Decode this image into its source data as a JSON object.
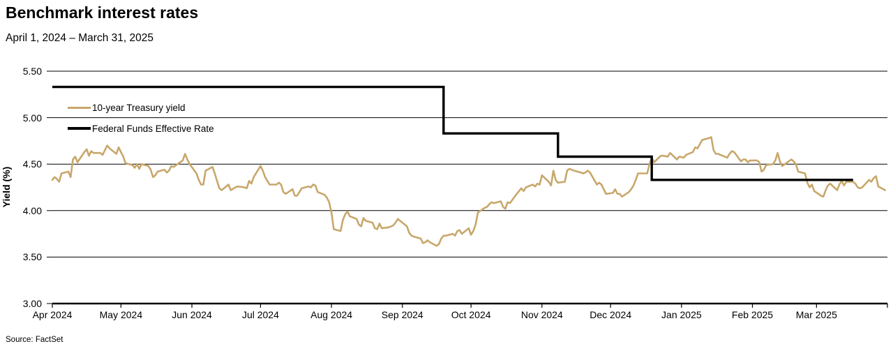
{
  "header": {
    "title": "Benchmark interest rates",
    "subtitle": "April 1, 2024 – March 31, 2025"
  },
  "footer": {
    "source": "Source: FactSet"
  },
  "chart_data": {
    "type": "line",
    "title": "Benchmark interest rates",
    "subtitle": "April 1, 2024 – March 31, 2025",
    "xlabel": "",
    "ylabel": "Yield (%)",
    "ylim": [
      3.0,
      5.5
    ],
    "x_domain_days": 365,
    "grid": "horizontal",
    "legend_position": "top-left-inside",
    "source": "Source: FactSet",
    "yticks": [
      {
        "value": 5.5,
        "label": "5.50"
      },
      {
        "value": 5.0,
        "label": "5.00"
      },
      {
        "value": 4.5,
        "label": "4.50"
      },
      {
        "value": 4.0,
        "label": "4.00"
      },
      {
        "value": 3.5,
        "label": "3.50"
      },
      {
        "value": 3.0,
        "label": "3.00"
      }
    ],
    "xticks": [
      {
        "day": 0,
        "label": "Apr 2024"
      },
      {
        "day": 30,
        "label": "May 2024"
      },
      {
        "day": 61,
        "label": "Jun 2024"
      },
      {
        "day": 91,
        "label": "Jul 2024"
      },
      {
        "day": 122,
        "label": "Aug 2024"
      },
      {
        "day": 153,
        "label": "Sep 2024"
      },
      {
        "day": 183,
        "label": "Oct 2024"
      },
      {
        "day": 214,
        "label": "Nov 2024"
      },
      {
        "day": 244,
        "label": "Dec 2024"
      },
      {
        "day": 275,
        "label": "Jan 2025"
      },
      {
        "day": 306,
        "label": "Feb 2025"
      },
      {
        "day": 334,
        "label": "Mar 2025"
      },
      {
        "day": 365,
        "label": ""
      }
    ],
    "series": [
      {
        "name": "10-year Treasury yield",
        "color": "#C8A76B",
        "width": 2.6,
        "points": [
          [
            0,
            4.33
          ],
          [
            1,
            4.36
          ],
          [
            2,
            4.34
          ],
          [
            3,
            4.31
          ],
          [
            4,
            4.4
          ],
          [
            7,
            4.42
          ],
          [
            8,
            4.36
          ],
          [
            9,
            4.55
          ],
          [
            10,
            4.58
          ],
          [
            11,
            4.52
          ],
          [
            14,
            4.63
          ],
          [
            15,
            4.66
          ],
          [
            16,
            4.59
          ],
          [
            17,
            4.64
          ],
          [
            18,
            4.62
          ],
          [
            21,
            4.62
          ],
          [
            22,
            4.6
          ],
          [
            23,
            4.65
          ],
          [
            24,
            4.7
          ],
          [
            25,
            4.67
          ],
          [
            28,
            4.61
          ],
          [
            29,
            4.68
          ],
          [
            30,
            4.63
          ],
          [
            31,
            4.58
          ],
          [
            32,
            4.51
          ],
          [
            35,
            4.49
          ],
          [
            36,
            4.46
          ],
          [
            37,
            4.5
          ],
          [
            38,
            4.45
          ],
          [
            39,
            4.5
          ],
          [
            42,
            4.48
          ],
          [
            43,
            4.44
          ],
          [
            44,
            4.36
          ],
          [
            45,
            4.38
          ],
          [
            46,
            4.42
          ],
          [
            49,
            4.44
          ],
          [
            50,
            4.41
          ],
          [
            51,
            4.43
          ],
          [
            52,
            4.48
          ],
          [
            53,
            4.47
          ],
          [
            57,
            4.54
          ],
          [
            58,
            4.61
          ],
          [
            59,
            4.55
          ],
          [
            60,
            4.5
          ],
          [
            63,
            4.4
          ],
          [
            64,
            4.33
          ],
          [
            65,
            4.28
          ],
          [
            66,
            4.28
          ],
          [
            67,
            4.43
          ],
          [
            70,
            4.47
          ],
          [
            71,
            4.4
          ],
          [
            72,
            4.32
          ],
          [
            73,
            4.24
          ],
          [
            74,
            4.22
          ],
          [
            77,
            4.28
          ],
          [
            78,
            4.22
          ],
          [
            80,
            4.25
          ],
          [
            81,
            4.26
          ],
          [
            84,
            4.25
          ],
          [
            85,
            4.24
          ],
          [
            86,
            4.32
          ],
          [
            87,
            4.29
          ],
          [
            88,
            4.36
          ],
          [
            91,
            4.48
          ],
          [
            92,
            4.43
          ],
          [
            93,
            4.36
          ],
          [
            95,
            4.28
          ],
          [
            98,
            4.28
          ],
          [
            99,
            4.3
          ],
          [
            100,
            4.28
          ],
          [
            101,
            4.2
          ],
          [
            102,
            4.18
          ],
          [
            105,
            4.23
          ],
          [
            106,
            4.16
          ],
          [
            107,
            4.16
          ],
          [
            108,
            4.2
          ],
          [
            109,
            4.24
          ],
          [
            112,
            4.26
          ],
          [
            113,
            4.25
          ],
          [
            114,
            4.28
          ],
          [
            115,
            4.27
          ],
          [
            116,
            4.2
          ],
          [
            119,
            4.17
          ],
          [
            120,
            4.14
          ],
          [
            121,
            4.09
          ],
          [
            122,
            3.98
          ],
          [
            123,
            3.8
          ],
          [
            126,
            3.78
          ],
          [
            127,
            3.9
          ],
          [
            128,
            3.96
          ],
          [
            129,
            3.99
          ],
          [
            130,
            3.94
          ],
          [
            133,
            3.91
          ],
          [
            134,
            3.85
          ],
          [
            135,
            3.83
          ],
          [
            136,
            3.92
          ],
          [
            137,
            3.89
          ],
          [
            140,
            3.87
          ],
          [
            141,
            3.81
          ],
          [
            142,
            3.8
          ],
          [
            143,
            3.86
          ],
          [
            144,
            3.81
          ],
          [
            147,
            3.82
          ],
          [
            148,
            3.83
          ],
          [
            149,
            3.84
          ],
          [
            150,
            3.87
          ],
          [
            151,
            3.91
          ],
          [
            155,
            3.83
          ],
          [
            156,
            3.76
          ],
          [
            157,
            3.73
          ],
          [
            158,
            3.72
          ],
          [
            161,
            3.7
          ],
          [
            162,
            3.65
          ],
          [
            163,
            3.66
          ],
          [
            164,
            3.68
          ],
          [
            165,
            3.66
          ],
          [
            168,
            3.62
          ],
          [
            169,
            3.64
          ],
          [
            170,
            3.7
          ],
          [
            171,
            3.73
          ],
          [
            172,
            3.73
          ],
          [
            175,
            3.75
          ],
          [
            176,
            3.73
          ],
          [
            177,
            3.78
          ],
          [
            178,
            3.79
          ],
          [
            179,
            3.75
          ],
          [
            182,
            3.81
          ],
          [
            183,
            3.74
          ],
          [
            184,
            3.78
          ],
          [
            185,
            3.85
          ],
          [
            186,
            3.98
          ],
          [
            189,
            4.03
          ],
          [
            190,
            4.04
          ],
          [
            191,
            4.07
          ],
          [
            192,
            4.09
          ],
          [
            193,
            4.08
          ],
          [
            196,
            4.1
          ],
          [
            197,
            4.04
          ],
          [
            198,
            4.02
          ],
          [
            199,
            4.09
          ],
          [
            200,
            4.08
          ],
          [
            203,
            4.18
          ],
          [
            204,
            4.21
          ],
          [
            205,
            4.24
          ],
          [
            206,
            4.21
          ],
          [
            207,
            4.25
          ],
          [
            210,
            4.28
          ],
          [
            211,
            4.26
          ],
          [
            212,
            4.29
          ],
          [
            213,
            4.28
          ],
          [
            214,
            4.38
          ],
          [
            217,
            4.31
          ],
          [
            218,
            4.27
          ],
          [
            219,
            4.43
          ],
          [
            220,
            4.33
          ],
          [
            221,
            4.3
          ],
          [
            224,
            4.31
          ],
          [
            225,
            4.43
          ],
          [
            226,
            4.45
          ],
          [
            227,
            4.44
          ],
          [
            228,
            4.43
          ],
          [
            231,
            4.41
          ],
          [
            232,
            4.4
          ],
          [
            233,
            4.41
          ],
          [
            234,
            4.43
          ],
          [
            235,
            4.41
          ],
          [
            238,
            4.28
          ],
          [
            239,
            4.3
          ],
          [
            240,
            4.28
          ],
          [
            242,
            4.18
          ],
          [
            245,
            4.19
          ],
          [
            246,
            4.23
          ],
          [
            247,
            4.18
          ],
          [
            248,
            4.18
          ],
          [
            249,
            4.15
          ],
          [
            252,
            4.2
          ],
          [
            253,
            4.23
          ],
          [
            254,
            4.27
          ],
          [
            255,
            4.33
          ],
          [
            256,
            4.4
          ],
          [
            259,
            4.4
          ],
          [
            260,
            4.4
          ],
          [
            261,
            4.5
          ],
          [
            262,
            4.57
          ],
          [
            263,
            4.52
          ],
          [
            266,
            4.59
          ],
          [
            267,
            4.59
          ],
          [
            269,
            4.58
          ],
          [
            270,
            4.62
          ],
          [
            273,
            4.55
          ],
          [
            274,
            4.58
          ],
          [
            276,
            4.57
          ],
          [
            277,
            4.6
          ],
          [
            280,
            4.63
          ],
          [
            281,
            4.68
          ],
          [
            282,
            4.67
          ],
          [
            284,
            4.76
          ],
          [
            287,
            4.78
          ],
          [
            288,
            4.79
          ],
          [
            289,
            4.65
          ],
          [
            290,
            4.61
          ],
          [
            291,
            4.61
          ],
          [
            295,
            4.57
          ],
          [
            296,
            4.61
          ],
          [
            297,
            4.64
          ],
          [
            298,
            4.63
          ],
          [
            301,
            4.53
          ],
          [
            302,
            4.55
          ],
          [
            303,
            4.55
          ],
          [
            304,
            4.52
          ],
          [
            305,
            4.54
          ],
          [
            308,
            4.54
          ],
          [
            309,
            4.52
          ],
          [
            310,
            4.42
          ],
          [
            311,
            4.44
          ],
          [
            312,
            4.49
          ],
          [
            315,
            4.5
          ],
          [
            316,
            4.54
          ],
          [
            317,
            4.62
          ],
          [
            318,
            4.53
          ],
          [
            319,
            4.48
          ],
          [
            323,
            4.55
          ],
          [
            324,
            4.53
          ],
          [
            325,
            4.5
          ],
          [
            326,
            4.42
          ],
          [
            329,
            4.4
          ],
          [
            330,
            4.3
          ],
          [
            331,
            4.25
          ],
          [
            332,
            4.28
          ],
          [
            333,
            4.21
          ],
          [
            336,
            4.16
          ],
          [
            337,
            4.15
          ],
          [
            338,
            4.22
          ],
          [
            339,
            4.27
          ],
          [
            340,
            4.29
          ],
          [
            343,
            4.22
          ],
          [
            344,
            4.28
          ],
          [
            345,
            4.32
          ],
          [
            346,
            4.27
          ],
          [
            347,
            4.31
          ],
          [
            350,
            4.31
          ],
          [
            351,
            4.29
          ],
          [
            352,
            4.25
          ],
          [
            353,
            4.24
          ],
          [
            354,
            4.25
          ],
          [
            357,
            4.33
          ],
          [
            358,
            4.31
          ],
          [
            359,
            4.35
          ],
          [
            360,
            4.37
          ],
          [
            361,
            4.26
          ],
          [
            364,
            4.22
          ]
        ]
      },
      {
        "name": "Federal Funds Effective Rate",
        "color": "#000000",
        "width": 3.4,
        "points": [
          [
            0,
            5.33
          ],
          [
            171,
            5.33
          ],
          [
            171,
            4.83
          ],
          [
            221,
            4.83
          ],
          [
            221,
            4.58
          ],
          [
            262,
            4.58
          ],
          [
            262,
            4.33
          ],
          [
            350,
            4.33
          ]
        ]
      }
    ]
  }
}
